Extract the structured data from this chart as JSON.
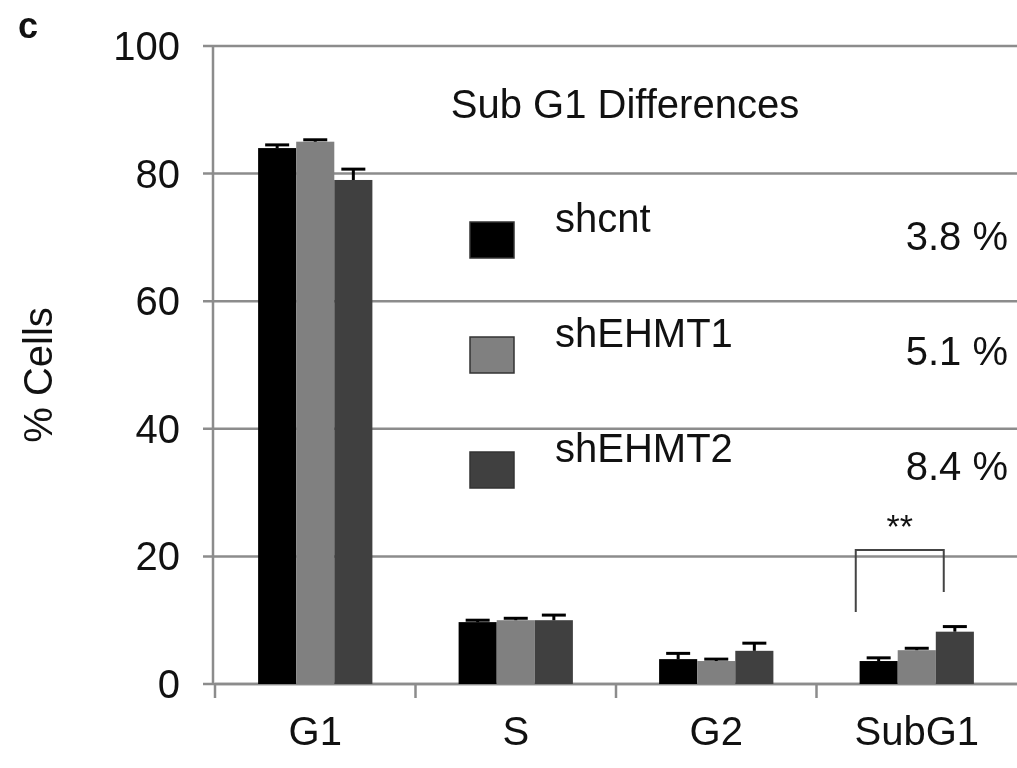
{
  "chart_data": {
    "type": "bar",
    "ylabel": "% Cells",
    "categories": [
      "G1",
      "S",
      "G2",
      "SubG1"
    ],
    "series": [
      {
        "name": "shcnt",
        "color": "#000000",
        "values": [
          84.0,
          9.7,
          3.9,
          3.6
        ],
        "errors": [
          0.5,
          0.3,
          0.9,
          0.5
        ]
      },
      {
        "name": "shEHMT1",
        "color": "#808080",
        "values": [
          85.0,
          10.0,
          3.6,
          5.3
        ],
        "errors": [
          0.3,
          0.3,
          0.3,
          0.3
        ]
      },
      {
        "name": "shEHMT2",
        "color": "#404040",
        "values": [
          79.0,
          10.0,
          5.2,
          8.2
        ],
        "errors": [
          1.7,
          0.8,
          1.2,
          0.8
        ]
      }
    ],
    "ylim": [
      0,
      100
    ],
    "yticks": [
      0,
      20,
      40,
      60,
      80,
      100
    ],
    "grid": "y",
    "legend": "center",
    "annotations": [
      "c",
      "Sub G1 Differences",
      "3.8 %",
      "5.1 %",
      "8.4 %",
      "**"
    ]
  }
}
